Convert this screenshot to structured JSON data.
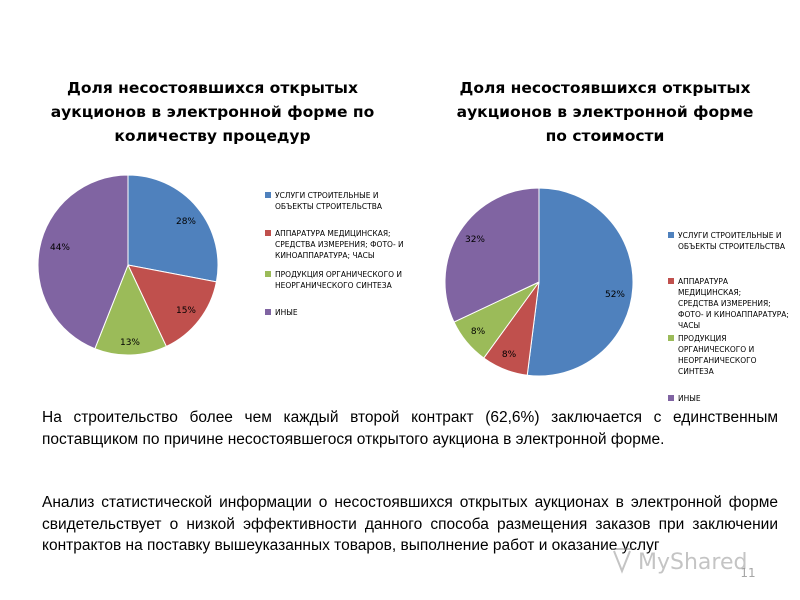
{
  "colors": {
    "blue": "#4f81bd",
    "red": "#c0504d",
    "green": "#9bbb59",
    "purple": "#8064a2"
  },
  "chart_data": [
    {
      "type": "pie",
      "title": "Доля несостоявшихся открытых аукционов в электронной форме по количеству процедур",
      "title_lines": [
        "Доля несостоявшихся открытых",
        "аукционов в электронной форме по",
        "количеству процедур"
      ],
      "slices": [
        {
          "label": "УСЛУГИ СТРОИТЕЛЬНЫЕ И ОБЪЕКТЫ СТРОИТЕЛЬСТВА",
          "label_lines": [
            "УСЛУГИ СТРОИТЕЛЬНЫЕ И",
            "ОБЪЕКТЫ СТРОИТЕЛЬСТВА"
          ],
          "value": 28,
          "display": "28%",
          "color": "#4f81bd"
        },
        {
          "label": "АППАРАТУРА МЕДИЦИНСКАЯ; СРЕДСТВА ИЗМЕРЕНИЯ; ФОТО- И КИНОАППАРАТУРА; ЧАСЫ",
          "label_lines": [
            "АППАРАТУРА МЕДИЦИНСКАЯ;",
            "СРЕДСТВА ИЗМЕРЕНИЯ; ФОТО- И",
            "КИНОАППАРАТУРА; ЧАСЫ"
          ],
          "value": 15,
          "display": "15%",
          "color": "#c0504d"
        },
        {
          "label": "ПРОДУКЦИЯ ОРГАНИЧЕСКОГО И НЕОРГАНИЧЕСКОГО СИНТЕЗА",
          "label_lines": [
            "ПРОДУКЦИЯ ОРГАНИЧЕСКОГО И",
            "НЕОРГАНИЧЕСКОГО СИНТЕЗА"
          ],
          "value": 13,
          "display": "13%",
          "color": "#9bbb59"
        },
        {
          "label": "ИНЫЕ",
          "label_lines": [
            "ИНЫЕ"
          ],
          "value": 44,
          "display": "44%",
          "color": "#8064a2"
        }
      ],
      "legend": "right"
    },
    {
      "type": "pie",
      "title": "Доля несостоявшихся открытых аукционов в электронной форме по стоимости",
      "title_lines": [
        "Доля несостоявшихся открытых",
        "аукционов в электронной форме",
        "по стоимости"
      ],
      "slices": [
        {
          "label": "УСЛУГИ СТРОИТЕЛЬНЫЕ И ОБЪЕКТЫ СТРОИТЕЛЬСТВА",
          "label_lines": [
            "УСЛУГИ СТРОИТЕЛЬНЫЕ И",
            "ОБЪЕКТЫ СТРОИТЕЛЬСТВА"
          ],
          "value": 52,
          "display": "52%",
          "color": "#4f81bd"
        },
        {
          "label": "АППАРАТУРА МЕДИЦИНСКАЯ; СРЕДСТВА ИЗМЕРЕНИЯ; ФОТО- И КИНОАППАРАТУРА; ЧАСЫ",
          "label_lines": [
            "АППАРАТУРА МЕДИЦИНСКАЯ;",
            "СРЕДСТВА ИЗМЕРЕНИЯ;",
            "ФОТО- И КИНОАППАРАТУРА;",
            "ЧАСЫ"
          ],
          "value": 8,
          "display": "8%",
          "color": "#c0504d"
        },
        {
          "label": "ПРОДУКЦИЯ ОРГАНИЧЕСКОГО И НЕОРГАНИЧЕСКОГО СИНТЕЗА",
          "label_lines": [
            "ПРОДУКЦИЯ",
            "ОРГАНИЧЕСКОГО И",
            "НЕОРГАНИЧЕСКОГО СИНТЕЗА"
          ],
          "value": 8,
          "display": "8%",
          "color": "#9bbb59"
        },
        {
          "label": "ИНЫЕ",
          "label_lines": [
            "ИНЫЕ"
          ],
          "value": 32,
          "display": "32%",
          "color": "#8064a2"
        }
      ],
      "legend": "right"
    }
  ],
  "text": {
    "paragraph_1": "На строительство более чем каждый второй контракт (62,6%) заключается с единственным поставщиком по причине несостоявшегося открытого аукциона в электронной форме.",
    "paragraph_2": "Анализ статистической информации о несостоявшихся открытых аукционах в электронной форме свидетельствует о низкой эффективности данного способа размещения заказов при заключении контрактов на поставку вышеуказанных товаров, выполнение работ и оказание услуг"
  },
  "page_number": "11"
}
